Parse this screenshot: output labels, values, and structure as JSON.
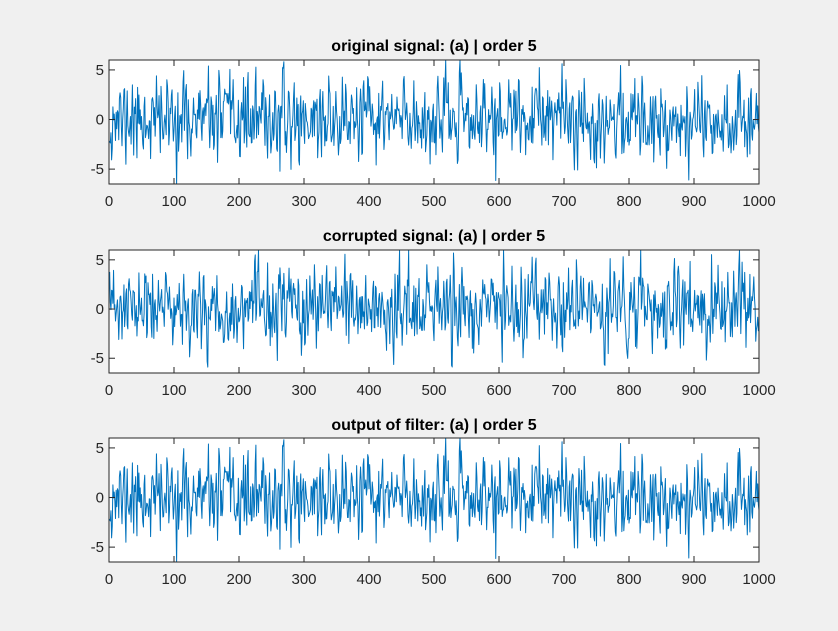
{
  "figure": {
    "background": "#f0f0f0"
  },
  "chart_data": [
    {
      "type": "line",
      "title": "original signal: (a) | order 5",
      "xlim": [
        0,
        1000
      ],
      "ylim": [
        -6.5,
        6
      ],
      "xticks": [
        0,
        100,
        200,
        300,
        400,
        500,
        600,
        700,
        800,
        900,
        1000
      ],
      "yticks": [
        -5,
        0,
        5
      ],
      "series_color": "#0072bd",
      "n_points": 1000,
      "seed": 11,
      "series": [
        {
          "values": []
        }
      ],
      "value_range": [
        -6.6,
        6.0
      ]
    },
    {
      "type": "line",
      "title": "corrupted signal: (a) | order 5",
      "xlim": [
        0,
        1000
      ],
      "ylim": [
        -6.5,
        6
      ],
      "xticks": [
        0,
        100,
        200,
        300,
        400,
        500,
        600,
        700,
        800,
        900,
        1000
      ],
      "yticks": [
        -5,
        0,
        5
      ],
      "series_color": "#0072bd",
      "n_points": 1000,
      "seed": 23,
      "series": [
        {
          "values": []
        }
      ],
      "value_range": [
        -6.6,
        6.0
      ]
    },
    {
      "type": "line",
      "title": "output of filter: (a) | order 5",
      "xlim": [
        0,
        1000
      ],
      "ylim": [
        -6.5,
        6
      ],
      "xticks": [
        0,
        100,
        200,
        300,
        400,
        500,
        600,
        700,
        800,
        900,
        1000
      ],
      "yticks": [
        -5,
        0,
        5
      ],
      "series_color": "#0072bd",
      "n_points": 1000,
      "seed": 11,
      "series": [
        {
          "values": []
        }
      ],
      "value_range": [
        -6.6,
        6.0
      ]
    }
  ]
}
